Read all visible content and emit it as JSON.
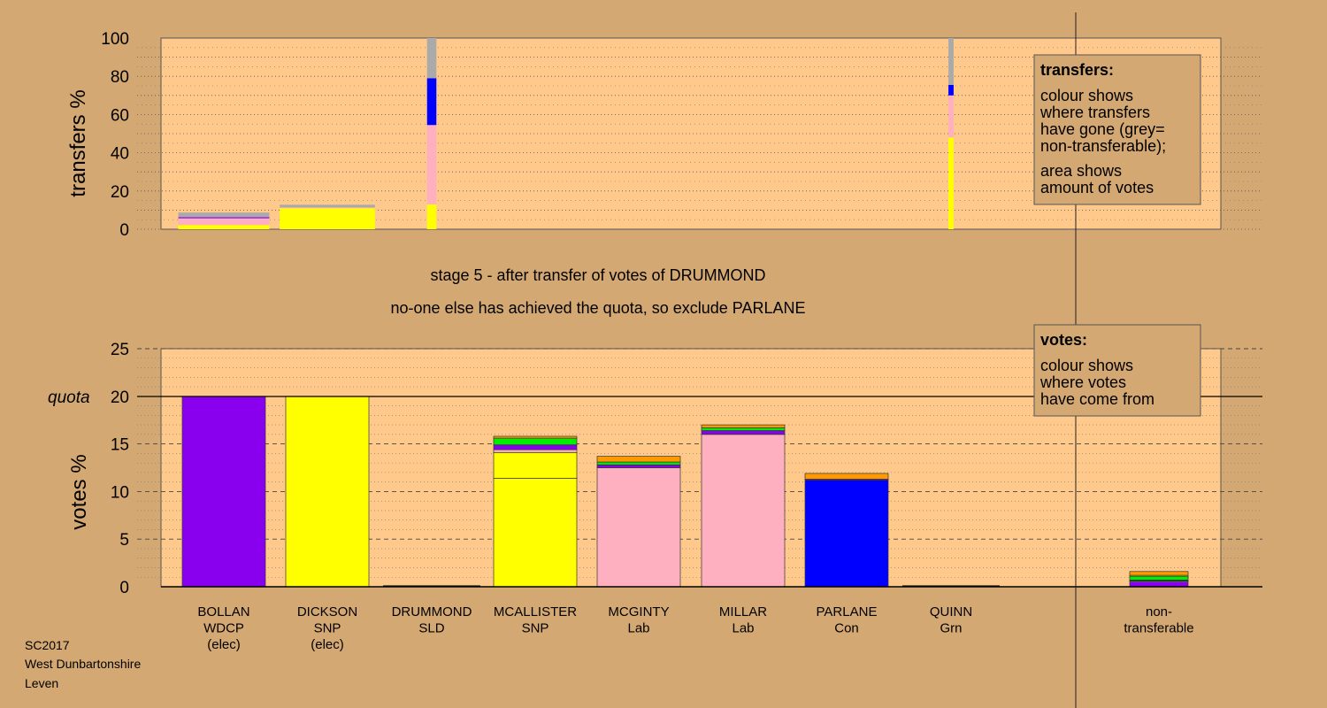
{
  "colors": {
    "background": "#d4a873",
    "plot_background": "#ffc98c",
    "WDCP": "#8800ee",
    "SNP": "#ffff00",
    "Lab": "#ffb0c0",
    "Con": "#0000ff",
    "SLD": "#ff9900",
    "Grn": "#00ee00",
    "non_transferable": "#aaaaaa"
  },
  "titles": {
    "stage": "stage 5 - after transfer of votes of DRUMMOND",
    "status": "no-one else has achieved the quota, so exclude PARLANE"
  },
  "footer": [
    "SC2017",
    "West Dunbartonshire",
    "Leven"
  ],
  "legends": {
    "transfers": {
      "title": "transfers:",
      "lines": [
        "colour shows",
        "where transfers",
        "have gone (grey=",
        "non-transferable);",
        "area shows",
        "amount of votes"
      ]
    },
    "votes": {
      "title": "votes:",
      "lines": [
        "colour shows",
        "where votes",
        "have come from"
      ]
    }
  },
  "chart_data": [
    {
      "type": "bar",
      "name": "transfers",
      "ylabel": "transfers %",
      "ylim": [
        0,
        100
      ],
      "yticks": [
        0,
        20,
        40,
        60,
        80,
        100
      ],
      "grid": true,
      "legend_position": "top-right",
      "categories": [
        "BOLLAN",
        "DICKSON",
        "DRUMMOND",
        "MCALLISTER",
        "MCGINTY",
        "MILLAR",
        "PARLANE",
        "QUINN"
      ],
      "bars": [
        {
          "category": "BOLLAN",
          "relative_width": 0.88,
          "segments": [
            {
              "party": "SNP",
              "value": 2.2
            },
            {
              "party": "Lab",
              "value": 3.5
            },
            {
              "party": "WDCP",
              "value": 0.6
            },
            {
              "party": "non_transferable",
              "value": 2.4
            }
          ]
        },
        {
          "category": "DICKSON",
          "relative_width": 0.92,
          "segments": [
            {
              "party": "SNP",
              "value": 11.0
            },
            {
              "party": "Lab",
              "value": 0.4
            },
            {
              "party": "non_transferable",
              "value": 1.4
            }
          ]
        },
        {
          "category": "DRUMMOND",
          "relative_width": 0.09,
          "segments": [
            {
              "party": "SNP",
              "value": 13.0
            },
            {
              "party": "Lab",
              "value": 41.5
            },
            {
              "party": "Con",
              "value": 24.5
            },
            {
              "party": "non_transferable",
              "value": 21.0
            }
          ]
        },
        {
          "category": "QUINN",
          "relative_width": 0.05,
          "segments": [
            {
              "party": "SNP",
              "value": 48.0
            },
            {
              "party": "Lab",
              "value": 22.0
            },
            {
              "party": "Con",
              "value": 5.5
            },
            {
              "party": "non_transferable",
              "value": 24.5
            }
          ]
        }
      ]
    },
    {
      "type": "bar",
      "name": "votes",
      "ylabel": "votes %",
      "ylim": [
        0,
        25
      ],
      "yticks": [
        0,
        5,
        10,
        15,
        20,
        25
      ],
      "quota": {
        "value": 20,
        "label": "quota"
      },
      "grid": true,
      "legend_position": "top-right",
      "categories": [
        {
          "name": "BOLLAN",
          "party": "WDCP",
          "note": "(elec)"
        },
        {
          "name": "DICKSON",
          "party": "SNP",
          "note": "(elec)"
        },
        {
          "name": "DRUMMOND",
          "party": "SLD",
          "note": ""
        },
        {
          "name": "MCALLISTER",
          "party": "SNP",
          "note": ""
        },
        {
          "name": "MCGINTY",
          "party": "Lab",
          "note": ""
        },
        {
          "name": "MILLAR",
          "party": "Lab",
          "note": ""
        },
        {
          "name": "PARLANE",
          "party": "Con",
          "note": ""
        },
        {
          "name": "QUINN",
          "party": "Grn",
          "note": ""
        },
        {
          "name": "non-",
          "party": "transferable",
          "note": ""
        }
      ],
      "bars": [
        {
          "category": "BOLLAN",
          "segments": [
            {
              "party": "WDCP",
              "value": 20.0
            }
          ]
        },
        {
          "category": "DICKSON",
          "segments": [
            {
              "party": "SNP",
              "value": 20.0
            }
          ]
        },
        {
          "category": "DRUMMOND",
          "segments": []
        },
        {
          "category": "MCALLISTER",
          "segments": [
            {
              "party": "SNP",
              "value": 11.4
            },
            {
              "party": "SNP",
              "value": 2.7
            },
            {
              "party": "Lab",
              "value": 0.3
            },
            {
              "party": "WDCP",
              "value": 0.5
            },
            {
              "party": "Grn",
              "value": 0.7
            },
            {
              "party": "SLD",
              "value": 0.2
            }
          ]
        },
        {
          "category": "MCGINTY",
          "segments": [
            {
              "party": "Lab",
              "value": 12.5
            },
            {
              "party": "WDCP",
              "value": 0.3
            },
            {
              "party": "Grn",
              "value": 0.3
            },
            {
              "party": "SLD",
              "value": 0.6
            }
          ]
        },
        {
          "category": "MILLAR",
          "segments": [
            {
              "party": "Lab",
              "value": 16.0
            },
            {
              "party": "WDCP",
              "value": 0.4
            },
            {
              "party": "Grn",
              "value": 0.3
            },
            {
              "party": "SLD",
              "value": 0.3
            }
          ]
        },
        {
          "category": "PARLANE",
          "segments": [
            {
              "party": "Con",
              "value": 11.2
            },
            {
              "party": "WDCP",
              "value": 0.1
            },
            {
              "party": "SLD",
              "value": 0.6
            }
          ]
        },
        {
          "category": "QUINN",
          "segments": []
        },
        {
          "category": "non-transferable",
          "segments": [
            {
              "party": "WDCP",
              "value": 0.5
            },
            {
              "party": "Lab",
              "value": 0.1
            },
            {
              "party": "Con",
              "value": 0.1
            },
            {
              "party": "Grn",
              "value": 0.4
            },
            {
              "party": "SNP",
              "value": 0.1
            },
            {
              "party": "SLD",
              "value": 0.4
            }
          ]
        }
      ]
    }
  ]
}
